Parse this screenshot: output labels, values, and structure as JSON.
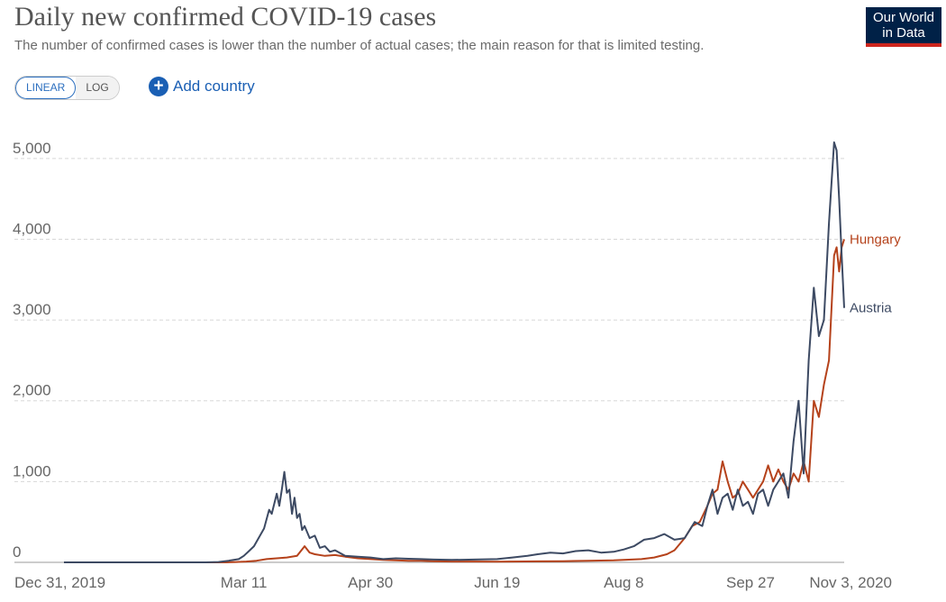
{
  "header": {
    "title": "Daily new confirmed COVID-19 cases",
    "subtitle": "The number of confirmed cases is lower than the number of actual cases; the main reason for that is limited testing.",
    "logo_line1": "Our World",
    "logo_line2": "in Data"
  },
  "controls": {
    "linear_label": "LINEAR",
    "log_label": "LOG",
    "add_country_label": "Add country",
    "selected_scale": "linear"
  },
  "colors": {
    "austria": "#3d4a63",
    "hungary": "#b5421b",
    "grid": "#d8d8d8",
    "accent": "#1a5fb4"
  },
  "chart_data": {
    "type": "line",
    "xlabel": "",
    "ylabel": "",
    "ylim": [
      0,
      5400
    ],
    "y_ticks": [
      0,
      1000,
      2000,
      3000,
      4000,
      5000
    ],
    "y_tick_labels": [
      "0",
      "1,000",
      "2,000",
      "3,000",
      "4,000",
      "5,000"
    ],
    "x_range": [
      "2019-12-31",
      "2020-11-03"
    ],
    "x_tick_labels": [
      {
        "date": "2019-12-31",
        "label": "Dec 31, 2019"
      },
      {
        "date": "2020-03-11",
        "label": "Mar 11"
      },
      {
        "date": "2020-04-30",
        "label": "Apr 30"
      },
      {
        "date": "2020-06-19",
        "label": "Jun 19"
      },
      {
        "date": "2020-08-08",
        "label": "Aug 8"
      },
      {
        "date": "2020-09-27",
        "label": "Sep 27"
      },
      {
        "date": "2020-11-03",
        "label": "Nov 3, 2020"
      }
    ],
    "grid": "horizontal dashed",
    "legend": "right, at line ends",
    "series": [
      {
        "name": "Austria",
        "points": [
          [
            "2019-12-31",
            0
          ],
          [
            "2020-02-25",
            0
          ],
          [
            "2020-03-01",
            5
          ],
          [
            "2020-03-05",
            20
          ],
          [
            "2020-03-09",
            40
          ],
          [
            "2020-03-11",
            80
          ],
          [
            "2020-03-13",
            140
          ],
          [
            "2020-03-15",
            200
          ],
          [
            "2020-03-17",
            310
          ],
          [
            "2020-03-19",
            420
          ],
          [
            "2020-03-21",
            650
          ],
          [
            "2020-03-22",
            600
          ],
          [
            "2020-03-24",
            850
          ],
          [
            "2020-03-25",
            700
          ],
          [
            "2020-03-26",
            900
          ],
          [
            "2020-03-27",
            1120
          ],
          [
            "2020-03-28",
            860
          ],
          [
            "2020-03-29",
            900
          ],
          [
            "2020-03-30",
            600
          ],
          [
            "2020-03-31",
            800
          ],
          [
            "2020-04-01",
            550
          ],
          [
            "2020-04-02",
            600
          ],
          [
            "2020-04-03",
            400
          ],
          [
            "2020-04-04",
            450
          ],
          [
            "2020-04-06",
            300
          ],
          [
            "2020-04-08",
            330
          ],
          [
            "2020-04-10",
            180
          ],
          [
            "2020-04-12",
            200
          ],
          [
            "2020-04-14",
            130
          ],
          [
            "2020-04-16",
            150
          ],
          [
            "2020-04-20",
            80
          ],
          [
            "2020-04-25",
            70
          ],
          [
            "2020-04-30",
            60
          ],
          [
            "2020-05-05",
            40
          ],
          [
            "2020-05-10",
            50
          ],
          [
            "2020-05-15",
            45
          ],
          [
            "2020-05-20",
            40
          ],
          [
            "2020-05-25",
            35
          ],
          [
            "2020-06-01",
            30
          ],
          [
            "2020-06-10",
            35
          ],
          [
            "2020-06-19",
            40
          ],
          [
            "2020-06-25",
            60
          ],
          [
            "2020-07-01",
            80
          ],
          [
            "2020-07-05",
            100
          ],
          [
            "2020-07-10",
            120
          ],
          [
            "2020-07-15",
            110
          ],
          [
            "2020-07-20",
            140
          ],
          [
            "2020-07-25",
            150
          ],
          [
            "2020-07-30",
            120
          ],
          [
            "2020-08-04",
            130
          ],
          [
            "2020-08-08",
            160
          ],
          [
            "2020-08-12",
            200
          ],
          [
            "2020-08-16",
            280
          ],
          [
            "2020-08-20",
            300
          ],
          [
            "2020-08-24",
            350
          ],
          [
            "2020-08-28",
            280
          ],
          [
            "2020-09-01",
            300
          ],
          [
            "2020-09-05",
            500
          ],
          [
            "2020-09-08",
            450
          ],
          [
            "2020-09-10",
            700
          ],
          [
            "2020-09-12",
            900
          ],
          [
            "2020-09-14",
            600
          ],
          [
            "2020-09-16",
            800
          ],
          [
            "2020-09-18",
            850
          ],
          [
            "2020-09-20",
            650
          ],
          [
            "2020-09-22",
            900
          ],
          [
            "2020-09-24",
            700
          ],
          [
            "2020-09-26",
            750
          ],
          [
            "2020-09-28",
            600
          ],
          [
            "2020-09-30",
            850
          ],
          [
            "2020-10-02",
            900
          ],
          [
            "2020-10-04",
            700
          ],
          [
            "2020-10-06",
            900
          ],
          [
            "2020-10-08",
            1000
          ],
          [
            "2020-10-10",
            1100
          ],
          [
            "2020-10-12",
            800
          ],
          [
            "2020-10-14",
            1500
          ],
          [
            "2020-10-16",
            2000
          ],
          [
            "2020-10-18",
            1100
          ],
          [
            "2020-10-20",
            2500
          ],
          [
            "2020-10-22",
            3400
          ],
          [
            "2020-10-24",
            2800
          ],
          [
            "2020-10-26",
            3000
          ],
          [
            "2020-10-28",
            4200
          ],
          [
            "2020-10-30",
            5200
          ],
          [
            "2020-10-31",
            5100
          ],
          [
            "2020-11-01",
            4500
          ],
          [
            "2020-11-02",
            3800
          ],
          [
            "2020-11-03",
            3150
          ]
        ]
      },
      {
        "name": "Hungary",
        "points": [
          [
            "2019-12-31",
            0
          ],
          [
            "2020-03-04",
            0
          ],
          [
            "2020-03-08",
            5
          ],
          [
            "2020-03-12",
            10
          ],
          [
            "2020-03-16",
            20
          ],
          [
            "2020-03-20",
            40
          ],
          [
            "2020-03-24",
            50
          ],
          [
            "2020-03-28",
            60
          ],
          [
            "2020-04-01",
            80
          ],
          [
            "2020-04-04",
            200
          ],
          [
            "2020-04-06",
            120
          ],
          [
            "2020-04-08",
            100
          ],
          [
            "2020-04-12",
            80
          ],
          [
            "2020-04-16",
            90
          ],
          [
            "2020-04-20",
            70
          ],
          [
            "2020-04-25",
            50
          ],
          [
            "2020-04-30",
            40
          ],
          [
            "2020-05-05",
            30
          ],
          [
            "2020-05-10",
            25
          ],
          [
            "2020-05-15",
            20
          ],
          [
            "2020-05-20",
            20
          ],
          [
            "2020-05-25",
            15
          ],
          [
            "2020-06-01",
            10
          ],
          [
            "2020-06-10",
            10
          ],
          [
            "2020-06-19",
            8
          ],
          [
            "2020-06-25",
            10
          ],
          [
            "2020-07-05",
            12
          ],
          [
            "2020-07-15",
            15
          ],
          [
            "2020-07-25",
            20
          ],
          [
            "2020-08-04",
            25
          ],
          [
            "2020-08-08",
            30
          ],
          [
            "2020-08-15",
            40
          ],
          [
            "2020-08-20",
            60
          ],
          [
            "2020-08-25",
            100
          ],
          [
            "2020-08-28",
            150
          ],
          [
            "2020-09-01",
            300
          ],
          [
            "2020-09-04",
            450
          ],
          [
            "2020-09-07",
            500
          ],
          [
            "2020-09-10",
            700
          ],
          [
            "2020-09-12",
            850
          ],
          [
            "2020-09-14",
            900
          ],
          [
            "2020-09-16",
            1250
          ],
          [
            "2020-09-18",
            1000
          ],
          [
            "2020-09-20",
            800
          ],
          [
            "2020-09-22",
            850
          ],
          [
            "2020-09-24",
            1000
          ],
          [
            "2020-09-26",
            900
          ],
          [
            "2020-09-28",
            800
          ],
          [
            "2020-09-30",
            900
          ],
          [
            "2020-10-02",
            1000
          ],
          [
            "2020-10-04",
            1200
          ],
          [
            "2020-10-06",
            1000
          ],
          [
            "2020-10-08",
            1150
          ],
          [
            "2020-10-10",
            1000
          ],
          [
            "2020-10-12",
            900
          ],
          [
            "2020-10-14",
            1100
          ],
          [
            "2020-10-16",
            1000
          ],
          [
            "2020-10-18",
            1250
          ],
          [
            "2020-10-20",
            1000
          ],
          [
            "2020-10-22",
            2000
          ],
          [
            "2020-10-24",
            1800
          ],
          [
            "2020-10-26",
            2200
          ],
          [
            "2020-10-28",
            2500
          ],
          [
            "2020-10-30",
            3800
          ],
          [
            "2020-10-31",
            3900
          ],
          [
            "2020-11-01",
            3600
          ],
          [
            "2020-11-02",
            3900
          ],
          [
            "2020-11-03",
            4000
          ]
        ]
      }
    ]
  }
}
